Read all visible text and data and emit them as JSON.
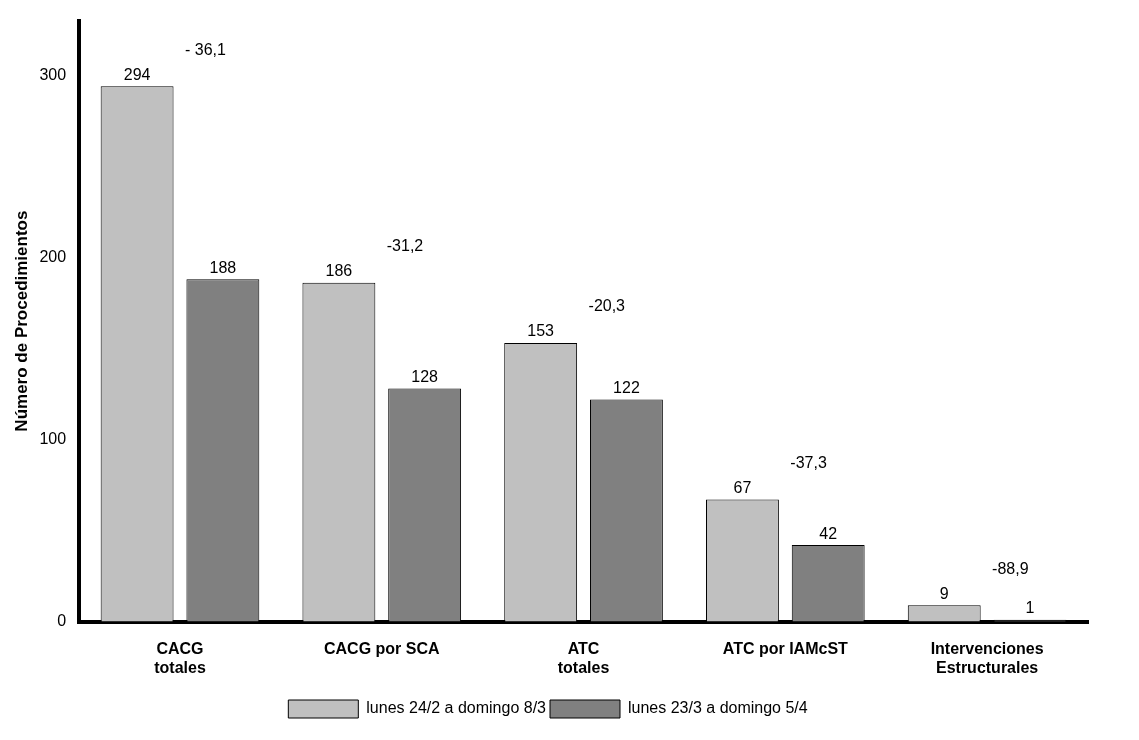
{
  "chart_data": {
    "type": "bar",
    "ylabel": "Número de Procedimientos",
    "categories": [
      "CACG\ntotales",
      "CACG por SCA",
      "ATC\ntotales",
      "ATC por IAMcST",
      "Intervenciones\nEstructurales"
    ],
    "series": [
      {
        "name": "lunes 24/2 a domingo 8/3",
        "color": "#c0c0c0",
        "values": [
          294,
          186,
          153,
          67,
          9
        ]
      },
      {
        "name": "lunes 23/3 a domingo 5/4",
        "color": "#808080",
        "values": [
          188,
          128,
          122,
          42,
          1
        ]
      }
    ],
    "ylim": [
      0,
      330
    ],
    "yticks": [
      0,
      100,
      200,
      300
    ],
    "grid": false,
    "legend": "bottom",
    "data_labels": true,
    "annotations": [
      "- 36,1",
      "-31,2",
      "-20,3",
      "-37,3",
      "-88,9"
    ]
  }
}
